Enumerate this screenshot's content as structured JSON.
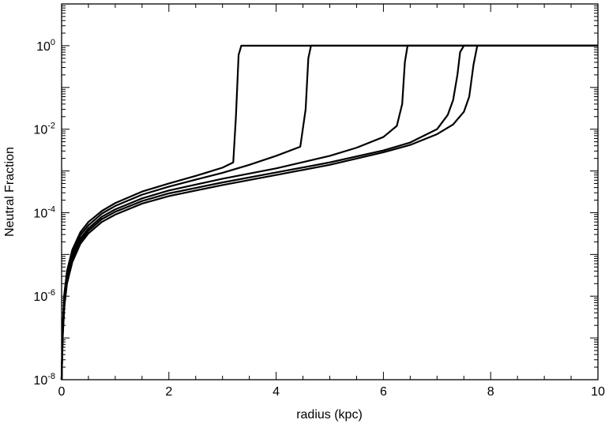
{
  "chart_data": {
    "type": "line",
    "title": "",
    "xlabel": "radius (kpc)",
    "ylabel": "Neutral Fraction",
    "xlim": [
      0,
      10
    ],
    "ylim_log10": [
      -8,
      1
    ],
    "yscale": "log",
    "grid": false,
    "legend": "none",
    "x_ticks": [
      {
        "value": 0,
        "label": "0"
      },
      {
        "value": 2,
        "label": "2"
      },
      {
        "value": 4,
        "label": "4"
      },
      {
        "value": 6,
        "label": "6"
      },
      {
        "value": 8,
        "label": "8"
      },
      {
        "value": 10,
        "label": "10"
      }
    ],
    "y_ticks": [
      {
        "value": 1,
        "base": "10",
        "exponent": "0"
      },
      {
        "value": 0.01,
        "base": "10",
        "exponent": "-2"
      },
      {
        "value": 0.0001,
        "base": "10",
        "exponent": "-4"
      },
      {
        "value": 1e-06,
        "base": "10",
        "exponent": "-6"
      },
      {
        "value": 1e-08,
        "base": "10",
        "exponent": "-8"
      }
    ],
    "series": [
      {
        "x": [
          0,
          0.02,
          0.05,
          0.1,
          0.2,
          0.35,
          0.5,
          0.75,
          1,
          1.5,
          2,
          2.5,
          3,
          3.2,
          3.25,
          3.3,
          3.35,
          10
        ],
        "y": [
          1e-08,
          2e-07,
          1.1e-06,
          4e-06,
          1.3e-05,
          3.4e-05,
          6e-05,
          0.00011,
          0.00017,
          0.00032,
          0.0005,
          0.00076,
          0.0012,
          0.0016,
          0.02,
          0.6,
          1.0,
          1.0
        ]
      },
      {
        "x": [
          0,
          0.02,
          0.05,
          0.1,
          0.2,
          0.35,
          0.5,
          0.75,
          1,
          1.5,
          2,
          2.5,
          3,
          3.5,
          4,
          4.45,
          4.55,
          4.6,
          4.65,
          10
        ],
        "y": [
          1e-08,
          1.7e-07,
          9e-07,
          3.4e-06,
          1.1e-05,
          2.9e-05,
          5e-05,
          9.5e-05,
          0.000145,
          0.00027,
          0.00042,
          0.00062,
          0.0009,
          0.0014,
          0.0023,
          0.0038,
          0.03,
          0.5,
          1.0,
          1.0
        ]
      },
      {
        "x": [
          0,
          0.02,
          0.05,
          0.1,
          0.2,
          0.35,
          0.5,
          0.75,
          1,
          1.5,
          2,
          3,
          4,
          5,
          5.5,
          6,
          6.25,
          6.35,
          6.4,
          6.45,
          10
        ],
        "y": [
          1e-08,
          1.4e-07,
          7.5e-07,
          2.8e-06,
          9e-06,
          2.4e-05,
          4.2e-05,
          8e-05,
          0.00012,
          0.00022,
          0.00034,
          0.00065,
          0.00115,
          0.0023,
          0.0036,
          0.0065,
          0.012,
          0.04,
          0.4,
          1.0,
          1.0
        ]
      },
      {
        "x": [
          0,
          0.02,
          0.05,
          0.1,
          0.2,
          0.35,
          0.5,
          0.75,
          1,
          1.5,
          2,
          3,
          4,
          5,
          6,
          6.5,
          7,
          7.2,
          7.3,
          7.38,
          7.43,
          7.5,
          10
        ],
        "y": [
          1e-08,
          1.2e-07,
          6.5e-07,
          2.4e-06,
          7.8e-06,
          2.1e-05,
          3.7e-05,
          7e-05,
          0.000105,
          0.00019,
          0.00029,
          0.00053,
          0.00092,
          0.0016,
          0.0031,
          0.0048,
          0.01,
          0.022,
          0.05,
          0.2,
          0.7,
          1.0,
          1.0
        ]
      },
      {
        "x": [
          0,
          0.02,
          0.05,
          0.1,
          0.2,
          0.35,
          0.5,
          0.75,
          1,
          1.5,
          2,
          3,
          4,
          5,
          6,
          6.5,
          7,
          7.3,
          7.5,
          7.6,
          7.68,
          7.75,
          10
        ],
        "y": [
          1e-08,
          1e-07,
          5.5e-07,
          2e-06,
          6.6e-06,
          1.8e-05,
          3.2e-05,
          6e-05,
          9e-05,
          0.000165,
          0.00025,
          0.00046,
          0.0008,
          0.0014,
          0.0028,
          0.0042,
          0.0076,
          0.013,
          0.026,
          0.06,
          0.35,
          1.0,
          1.0
        ]
      }
    ]
  }
}
